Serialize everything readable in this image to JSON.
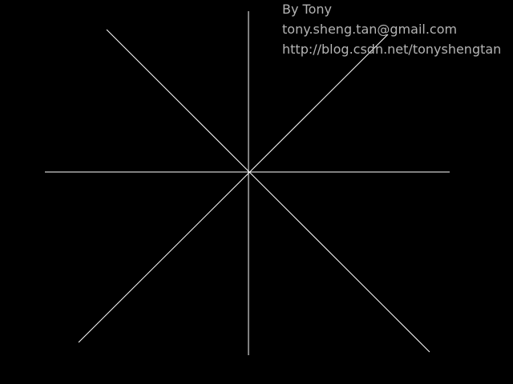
{
  "window": {
    "background_color": "#000000"
  },
  "credits": {
    "author": "By Tony",
    "email": "tony.sheng.tan@gmail.com",
    "url": "http://blog.csdn.net/tonyshengtan",
    "text_color": "#b4b4b4"
  },
  "drawing": {
    "line_color": "#ffffff",
    "line_count": 4
  }
}
